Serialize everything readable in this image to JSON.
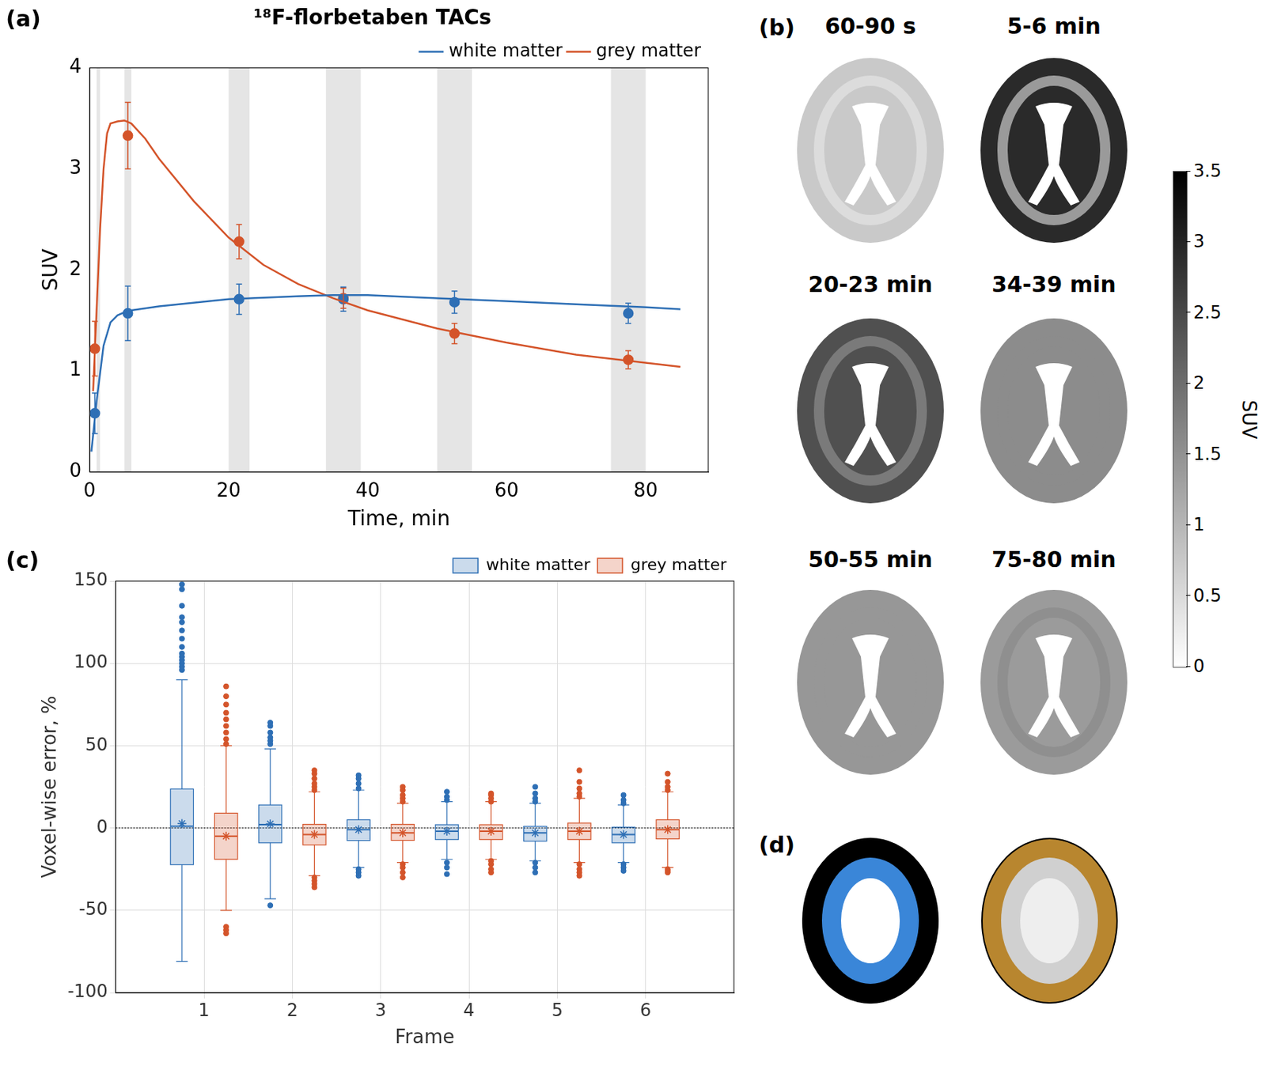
{
  "chart_data": [
    {
      "label": "(a)",
      "type": "line",
      "title": "¹⁸F-florbetaben TACs",
      "x_label": "Time, min",
      "y_label": "SUV",
      "xlim": [
        0,
        89
      ],
      "xticks": [
        0,
        20,
        40,
        60,
        80
      ],
      "ylim": [
        0,
        4
      ],
      "yticks": [
        0,
        1,
        2,
        3,
        4
      ],
      "legend": "upper right",
      "frames": [
        [
          1,
          1.5
        ],
        [
          5,
          6
        ],
        [
          20,
          23
        ],
        [
          34,
          39
        ],
        [
          50,
          55
        ],
        [
          75,
          80
        ]
      ],
      "series": [
        {
          "name": "white matter",
          "color": "#2e6fb5",
          "line_style": "solid",
          "x": [
            0.25,
            1,
            2,
            3,
            4,
            5,
            6,
            10,
            20,
            30,
            35,
            40,
            50,
            60,
            70,
            80,
            85
          ],
          "values": [
            0.2,
            0.7,
            1.25,
            1.48,
            1.55,
            1.58,
            1.6,
            1.64,
            1.71,
            1.74,
            1.75,
            1.75,
            1.72,
            1.69,
            1.66,
            1.63,
            1.61
          ]
        },
        {
          "name": "grey matter",
          "color": "#d4542a",
          "line_style": "solid",
          "x": [
            0.5,
            1,
            1.5,
            2,
            2.5,
            3,
            4,
            5,
            6,
            8,
            10,
            15,
            20,
            25,
            30,
            35,
            40,
            50,
            60,
            70,
            80,
            85
          ],
          "values": [
            0.8,
            1.6,
            2.4,
            3.0,
            3.35,
            3.45,
            3.47,
            3.48,
            3.45,
            3.3,
            3.1,
            2.68,
            2.32,
            2.05,
            1.86,
            1.72,
            1.6,
            1.42,
            1.28,
            1.16,
            1.08,
            1.04
          ]
        },
        {
          "type": "scatter",
          "color": "#2e6fb5",
          "marker": "circle",
          "x": [
            0.75,
            5.5,
            21.5,
            36.5,
            52.5,
            77.5
          ],
          "values": [
            0.58,
            1.57,
            1.71,
            1.71,
            1.68,
            1.57
          ],
          "error": [
            0.2,
            0.27,
            0.15,
            0.12,
            0.11,
            0.1
          ]
        },
        {
          "type": "scatter",
          "color": "#d4542a",
          "marker": "circle",
          "x": [
            0.75,
            5.5,
            21.5,
            36.5,
            52.5,
            77.5
          ],
          "values": [
            1.22,
            3.33,
            2.28,
            1.72,
            1.37,
            1.11
          ],
          "error": [
            0.27,
            0.33,
            0.17,
            0.1,
            0.1,
            0.09
          ]
        }
      ]
    },
    {
      "label": "(c)",
      "type": "box",
      "x_label": "Frame",
      "y_label": "Voxel-wise error, %",
      "xlim": [
        0,
        7
      ],
      "xticks": [
        1,
        2,
        3,
        4,
        5,
        6
      ],
      "ylim": [
        -100,
        150
      ],
      "yticks": [
        -100,
        -50,
        0,
        50,
        100,
        150
      ],
      "grid": true,
      "legend": "upper right",
      "hline": 0,
      "categories": [
        1,
        2,
        3,
        4,
        5,
        6
      ],
      "series": [
        {
          "name": "white matter",
          "color": "#2e6fb5",
          "q1": [
            -22.3,
            -9,
            -7.6,
            -7,
            -8,
            -9
          ],
          "median": [
            1,
            2,
            -1,
            -2,
            -3,
            -4
          ],
          "q3": [
            23.7,
            14,
            5,
            2,
            1,
            0.5
          ],
          "whisker_low": [
            -81,
            -43,
            -24,
            -19,
            -20,
            -21
          ],
          "whisker_high": [
            90,
            48,
            23,
            16,
            15,
            14
          ],
          "mean": [
            2.7,
            2.5,
            -1,
            -2,
            -3,
            -4
          ],
          "outliers": [
            [
              96,
              98,
              100,
              102,
              104,
              106,
              110,
              115,
              120,
              125,
              128,
              135,
              145,
              148
            ],
            [
              51,
              53,
              55,
              58,
              62,
              64,
              -47
            ],
            [
              24,
              27,
              30,
              32,
              -25,
              -27,
              -29
            ],
            [
              17,
              19,
              22,
              -21,
              -24,
              -28
            ],
            [
              16,
              18,
              21,
              25,
              -21,
              -24,
              -27
            ],
            [
              15,
              17,
              20,
              -22,
              -24,
              -26
            ]
          ]
        },
        {
          "name": "grey matter",
          "color": "#d4542a",
          "q1": [
            -19,
            -10.3,
            -7.5,
            -7,
            -7,
            -6.6
          ],
          "median": [
            -5,
            -4,
            -3,
            -2,
            -2,
            -1
          ],
          "q3": [
            9,
            2.2,
            2.2,
            2,
            3,
            5
          ],
          "whisker_low": [
            -50,
            -29,
            -21,
            -19,
            -21,
            -24
          ],
          "whisker_high": [
            50,
            22,
            15,
            16,
            18,
            22
          ],
          "mean": [
            -5,
            -4,
            -3,
            -2,
            -2,
            -1
          ],
          "outliers": [
            [
              51,
              54,
              58,
              62,
              66,
              70,
              75,
              80,
              86,
              -60,
              -62,
              -64
            ],
            [
              23,
              25,
              27,
              30,
              33,
              35,
              -30,
              -32,
              -34,
              -36
            ],
            [
              16,
              18,
              20,
              23,
              25,
              -22,
              -24,
              -27,
              -30
            ],
            [
              16,
              18,
              20,
              21,
              -20,
              -22,
              -25,
              -27
            ],
            [
              19,
              21,
              24,
              28,
              35,
              -22,
              -25,
              -27,
              -29
            ],
            [
              23,
              25,
              28,
              33,
              -25,
              -26,
              -27
            ]
          ]
        }
      ]
    }
  ],
  "panel_b": {
    "label": "(b)",
    "images": [
      "60-90 s",
      "5-6 min",
      "20-23 min",
      "34-39 min",
      "50-55 min",
      "75-80 min"
    ],
    "colorbar": {
      "label": "SUV",
      "lim": [
        0,
        3.5
      ],
      "ticks": [
        0,
        0.5,
        1,
        1.5,
        2,
        2.5,
        3,
        3.5
      ]
    }
  },
  "panel_d": {
    "label": "(d)"
  }
}
